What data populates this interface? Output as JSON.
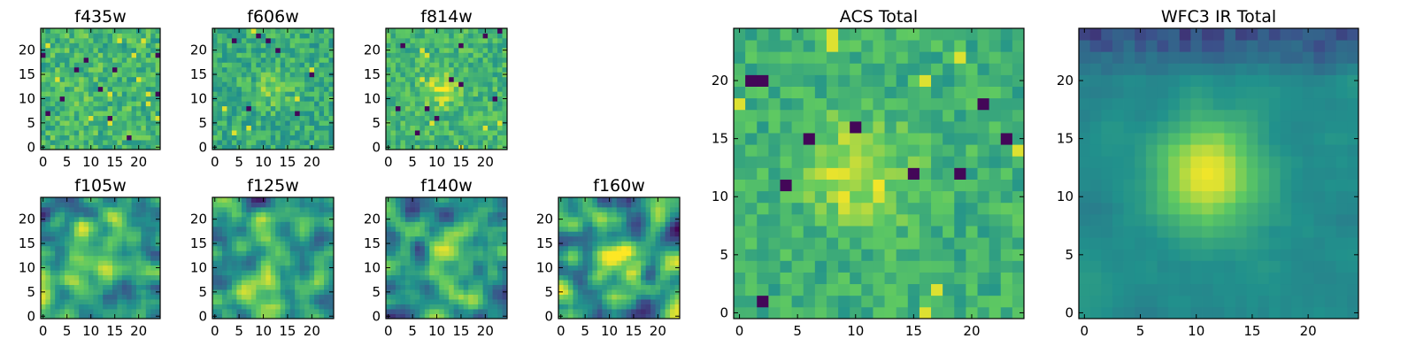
{
  "figure": {
    "colormap": "viridis",
    "colormap_stops": [
      "#440154",
      "#3b528b",
      "#21918c",
      "#5ec962",
      "#fde725"
    ]
  },
  "chart_data": [
    {
      "type": "heatmap",
      "id": "f435w",
      "title": "f435w",
      "grid_size": 25,
      "xlim": [
        -0.5,
        24.5
      ],
      "ylim": [
        -0.5,
        24.5
      ],
      "xticks": [
        0,
        5,
        10,
        15,
        20
      ],
      "yticks": [
        0,
        5,
        10,
        15,
        20
      ],
      "xtick_labels": [
        "0",
        "5",
        "10",
        "15",
        "20"
      ],
      "ytick_labels": [
        "0",
        "5",
        "10",
        "15",
        "20"
      ],
      "peak": [
        12,
        11
      ],
      "peak_strength": 0.02,
      "sigma": 4,
      "baseline": 0.66,
      "noise": 0.16,
      "smoothing": 0,
      "outlier_rate": 0.04,
      "seed": 101
    },
    {
      "type": "heatmap",
      "id": "f606w",
      "title": "f606w",
      "grid_size": 25,
      "xlim": [
        -0.5,
        24.5
      ],
      "ylim": [
        -0.5,
        24.5
      ],
      "xticks": [
        0,
        5,
        10,
        15,
        20
      ],
      "yticks": [
        0,
        5,
        10,
        15,
        20
      ],
      "xtick_labels": [
        "0",
        "5",
        "10",
        "15",
        "20"
      ],
      "ytick_labels": [
        "0",
        "5",
        "10",
        "15",
        "20"
      ],
      "peak": [
        12,
        12
      ],
      "peak_strength": 0.18,
      "sigma": 2.5,
      "baseline": 0.62,
      "noise": 0.15,
      "smoothing": 0,
      "outlier_rate": 0.03,
      "seed": 202
    },
    {
      "type": "heatmap",
      "id": "f814w",
      "title": "f814w",
      "grid_size": 25,
      "xlim": [
        -0.5,
        24.5
      ],
      "ylim": [
        -0.5,
        24.5
      ],
      "xticks": [
        0,
        5,
        10,
        15,
        20
      ],
      "yticks": [
        0,
        5,
        10,
        15,
        20
      ],
      "xtick_labels": [
        "0",
        "5",
        "10",
        "15",
        "20"
      ],
      "ytick_labels": [
        "0",
        "5",
        "10",
        "15",
        "20"
      ],
      "peak": [
        11,
        12
      ],
      "peak_strength": 0.25,
      "sigma": 2.5,
      "baseline": 0.66,
      "noise": 0.14,
      "smoothing": 0,
      "outlier_rate": 0.03,
      "seed": 303
    },
    {
      "type": "heatmap",
      "id": "f105w",
      "title": "f105w",
      "grid_size": 25,
      "xlim": [
        -0.5,
        24.5
      ],
      "ylim": [
        -0.5,
        24.5
      ],
      "xticks": [
        0,
        5,
        10,
        15,
        20
      ],
      "yticks": [
        0,
        5,
        10,
        15,
        20
      ],
      "xtick_labels": [
        "0",
        "5",
        "10",
        "15",
        "20"
      ],
      "ytick_labels": [
        "0",
        "5",
        "10",
        "15",
        "20"
      ],
      "peak": [
        10,
        11
      ],
      "peak_strength": 0.22,
      "sigma": 3.5,
      "baseline": 0.55,
      "noise": 0.3,
      "smoothing": 2,
      "outlier_rate": 0.0,
      "seed": 404
    },
    {
      "type": "heatmap",
      "id": "f125w",
      "title": "f125w",
      "grid_size": 25,
      "xlim": [
        -0.5,
        24.5
      ],
      "ylim": [
        -0.5,
        24.5
      ],
      "xticks": [
        0,
        5,
        10,
        15,
        20
      ],
      "yticks": [
        0,
        5,
        10,
        15,
        20
      ],
      "xtick_labels": [
        "0",
        "5",
        "10",
        "15",
        "20"
      ],
      "ytick_labels": [
        "0",
        "5",
        "10",
        "15",
        "20"
      ],
      "peak": [
        12,
        11
      ],
      "peak_strength": 0.22,
      "sigma": 3.5,
      "baseline": 0.56,
      "noise": 0.3,
      "smoothing": 2,
      "outlier_rate": 0.0,
      "seed": 505
    },
    {
      "type": "heatmap",
      "id": "f140w",
      "title": "f140w",
      "grid_size": 25,
      "xlim": [
        -0.5,
        24.5
      ],
      "ylim": [
        -0.5,
        24.5
      ],
      "xticks": [
        0,
        5,
        10,
        15,
        20
      ],
      "yticks": [
        0,
        5,
        10,
        15,
        20
      ],
      "xtick_labels": [
        "0",
        "5",
        "10",
        "15",
        "20"
      ],
      "ytick_labels": [
        "0",
        "5",
        "10",
        "15",
        "20"
      ],
      "peak": [
        12,
        12
      ],
      "peak_strength": 0.28,
      "sigma": 3.5,
      "baseline": 0.55,
      "noise": 0.3,
      "smoothing": 2,
      "outlier_rate": 0.0,
      "seed": 606
    },
    {
      "type": "heatmap",
      "id": "f160w",
      "title": "f160w",
      "grid_size": 25,
      "xlim": [
        -0.5,
        24.5
      ],
      "ylim": [
        -0.5,
        24.5
      ],
      "xticks": [
        0,
        5,
        10,
        15,
        20
      ],
      "yticks": [
        0,
        5,
        10,
        15,
        20
      ],
      "xtick_labels": [
        "0",
        "5",
        "10",
        "15",
        "20"
      ],
      "ytick_labels": [
        "0",
        "5",
        "10",
        "15",
        "20"
      ],
      "peak": [
        12,
        12
      ],
      "peak_strength": 0.3,
      "sigma": 3.5,
      "baseline": 0.56,
      "noise": 0.3,
      "smoothing": 2,
      "outlier_rate": 0.0,
      "seed": 707
    },
    {
      "type": "heatmap",
      "id": "acs-total",
      "title": "ACS Total",
      "grid_size": 25,
      "xlim": [
        -0.5,
        24.5
      ],
      "ylim": [
        -0.5,
        24.5
      ],
      "xticks": [
        0,
        5,
        10,
        15,
        20
      ],
      "yticks": [
        0,
        5,
        10,
        15,
        20
      ],
      "xtick_labels": [
        "0",
        "5",
        "10",
        "15",
        "20"
      ],
      "ytick_labels": [
        "0",
        "5",
        "10",
        "15",
        "20"
      ],
      "peak": [
        10,
        12
      ],
      "peak_strength": 0.3,
      "sigma": 3,
      "baseline": 0.64,
      "noise": 0.12,
      "smoothing": 0,
      "outlier_rate": 0.03,
      "seed": 808
    },
    {
      "type": "heatmap",
      "id": "wfc3-ir-total",
      "title": "WFC3 IR Total",
      "grid_size": 25,
      "xlim": [
        -0.5,
        24.5
      ],
      "ylim": [
        -0.5,
        24.5
      ],
      "xticks": [
        0,
        5,
        10,
        15,
        20
      ],
      "yticks": [
        0,
        5,
        10,
        15,
        20
      ],
      "xtick_labels": [
        "0",
        "5",
        "10",
        "15",
        "20"
      ],
      "ytick_labels": [
        "0",
        "5",
        "10",
        "15",
        "20"
      ],
      "peak": [
        11,
        12
      ],
      "peak_strength": 0.5,
      "sigma": 3.2,
      "baseline": 0.48,
      "noise": 0.05,
      "smoothing": 1,
      "outlier_rate": 0.0,
      "top_dark_rows": 4,
      "seed": 909
    }
  ]
}
